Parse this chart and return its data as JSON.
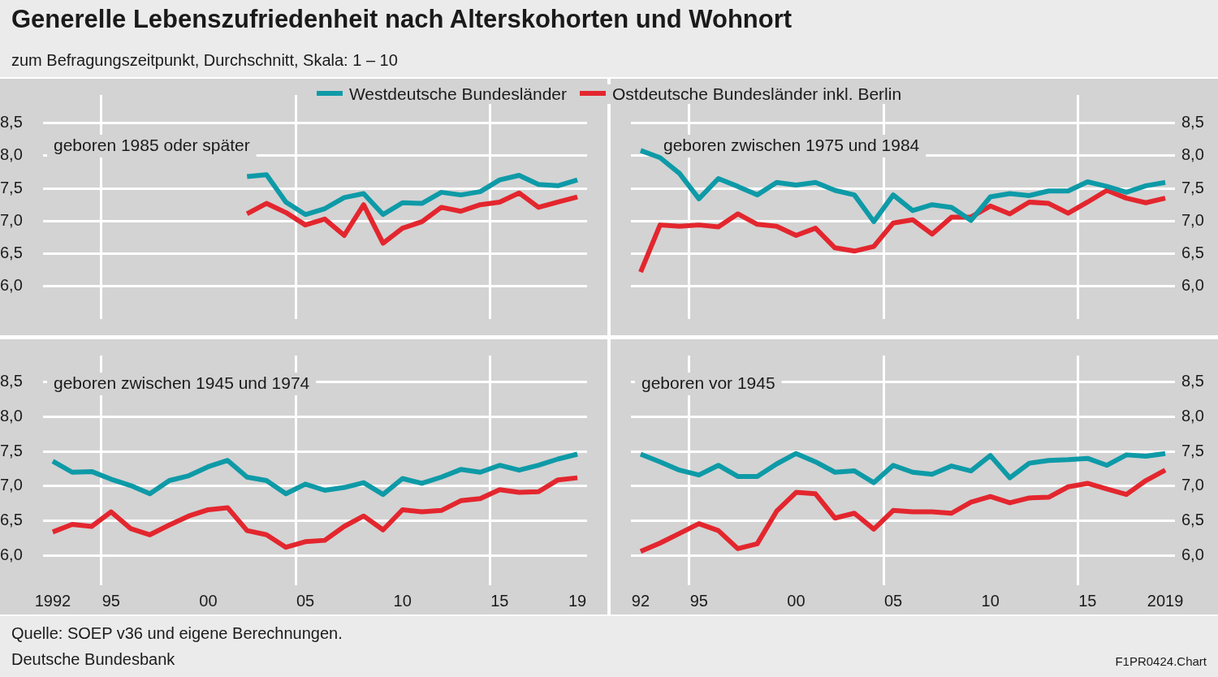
{
  "chart_data": [
    {
      "type": "line",
      "title": "Generelle Lebenszufriedenheit nach Alterskohorten und Wohnort",
      "subtitle": "zum Befragungszeitpunkt, Durchschnitt, Skala: 1 – 10",
      "annotations": [
        "geboren 1985 oder später",
        "Quelle: SOEP v36 und eigene Berechnungen.",
        "Deutsche Bundesbank",
        "F1PR0424.Chart"
      ],
      "xlim": [
        1991.5,
        2019.5
      ],
      "xticks": [
        {
          "value": 1994.5,
          "label": null
        },
        {
          "value": 2004.5,
          "label": null
        },
        {
          "value": 2014.5,
          "label": null
        }
      ],
      "ylim": [
        5.5,
        8.93
      ],
      "yticks": [
        {
          "value": 6,
          "label": "6,0"
        },
        {
          "value": 6.5,
          "label": "6,5"
        },
        {
          "value": 7,
          "label": "7,0"
        },
        {
          "value": 7.5,
          "label": "7,5"
        },
        {
          "value": 8,
          "label": "8,0"
        },
        {
          "value": 8.5,
          "label": "8,5"
        }
      ],
      "grid": true,
      "tick_labels": "y",
      "legend": "top",
      "series": [
        {
          "name": "Westdeutsche Bundesländer",
          "color": "#0e9aa7",
          "x": [
            2002,
            2003,
            2004,
            2005,
            2006,
            2007,
            2008,
            2009,
            2010,
            2011,
            2012,
            2013,
            2014,
            2015,
            2016,
            2017,
            2018,
            2019
          ],
          "values": [
            7.68,
            7.71,
            7.29,
            7.1,
            7.19,
            7.36,
            7.42,
            7.1,
            7.28,
            7.27,
            7.44,
            7.4,
            7.45,
            7.63,
            7.7,
            7.56,
            7.54,
            7.63
          ]
        },
        {
          "name": "Ostdeutsche Bundesländer inkl. Berlin",
          "color": "#e3262e",
          "x": [
            2002,
            2003,
            2004,
            2005,
            2006,
            2007,
            2008,
            2009,
            2010,
            2011,
            2012,
            2013,
            2014,
            2015,
            2016,
            2017,
            2018,
            2019
          ],
          "values": [
            7.11,
            7.27,
            7.13,
            6.94,
            7.03,
            6.78,
            7.25,
            6.66,
            6.89,
            6.99,
            7.21,
            7.15,
            7.25,
            7.29,
            7.43,
            7.21,
            7.29,
            7.37
          ]
        }
      ]
    },
    {
      "type": "line",
      "title": "geboren zwischen 1975 und 1984",
      "x": [
        1992,
        1993,
        1994,
        1995,
        1996,
        1997,
        1998,
        1999,
        2000,
        2001,
        2002,
        2003,
        2004,
        2005,
        2006,
        2007,
        2008,
        2009,
        2010,
        2011,
        2012,
        2013,
        2014,
        2015,
        2016,
        2017,
        2018,
        2019
      ],
      "xlim": [
        1991.5,
        2019.5
      ],
      "xticks": [
        {
          "value": 1994.5,
          "label": null
        },
        {
          "value": 2004.5,
          "label": null
        },
        {
          "value": 2014.5,
          "label": null
        }
      ],
      "ylim": [
        5.5,
        8.93
      ],
      "yticks": [
        {
          "value": 6,
          "label": "6,0"
        },
        {
          "value": 6.5,
          "label": "6,5"
        },
        {
          "value": 7,
          "label": "7,0"
        },
        {
          "value": 7.5,
          "label": "7,5"
        },
        {
          "value": 8,
          "label": "8,0"
        },
        {
          "value": 8.5,
          "label": "8,5"
        }
      ],
      "grid": true,
      "tick_labels": "y",
      "series": [
        {
          "color": "#0e9aa7",
          "values": [
            8.08,
            7.97,
            7.73,
            7.34,
            7.65,
            7.53,
            7.4,
            7.59,
            7.55,
            7.59,
            7.47,
            7.4,
            6.99,
            7.4,
            7.16,
            7.25,
            7.21,
            7.01,
            7.37,
            7.42,
            7.39,
            7.46,
            7.46,
            7.6,
            7.53,
            7.44,
            7.54,
            7.59
          ]
        },
        {
          "color": "#e3262e",
          "values": [
            6.22,
            6.94,
            6.92,
            6.94,
            6.91,
            7.11,
            6.95,
            6.92,
            6.78,
            6.89,
            6.59,
            6.54,
            6.61,
            6.97,
            7.02,
            6.8,
            7.06,
            7.06,
            7.23,
            7.11,
            7.29,
            7.27,
            7.12,
            7.29,
            7.47,
            7.35,
            7.28,
            7.35
          ]
        }
      ]
    },
    {
      "type": "line",
      "title": "geboren zwischen 1945 und 1974",
      "x": [
        1992,
        1993,
        1994,
        1995,
        1996,
        1997,
        1998,
        1999,
        2000,
        2001,
        2002,
        2003,
        2004,
        2005,
        2006,
        2007,
        2008,
        2009,
        2010,
        2011,
        2012,
        2013,
        2014,
        2015,
        2016,
        2017,
        2018,
        2019
      ],
      "xlim": [
        1991.5,
        2019.5
      ],
      "xticks": [
        {
          "value": 1992,
          "label": "1992"
        },
        {
          "value": 1994.5,
          "label": null
        },
        {
          "value": 1995,
          "label": "95"
        },
        {
          "value": 2000,
          "label": "00"
        },
        {
          "value": 2004.5,
          "label": null
        },
        {
          "value": 2005,
          "label": "05"
        },
        {
          "value": 2010,
          "label": "10"
        },
        {
          "value": 2014.5,
          "label": null
        },
        {
          "value": 2015,
          "label": "15"
        },
        {
          "value": 2019,
          "label": "19"
        }
      ],
      "ylim": [
        5.83,
        8.88
      ],
      "yticks": [
        {
          "value": 6,
          "label": "6,0"
        },
        {
          "value": 6.5,
          "label": "6,5"
        },
        {
          "value": 7,
          "label": "7,0"
        },
        {
          "value": 7.5,
          "label": "7,5"
        },
        {
          "value": 8,
          "label": "8,0"
        },
        {
          "value": 8.5,
          "label": "8,5"
        }
      ],
      "grid": true,
      "series": [
        {
          "color": "#0e9aa7",
          "values": [
            7.36,
            7.2,
            7.21,
            7.1,
            7.01,
            6.89,
            7.08,
            7.15,
            7.28,
            7.37,
            7.13,
            7.08,
            6.89,
            7.03,
            6.94,
            6.98,
            7.05,
            6.88,
            7.11,
            7.04,
            7.13,
            7.24,
            7.2,
            7.3,
            7.23,
            7.3,
            7.39,
            7.46
          ]
        },
        {
          "color": "#e3262e",
          "values": [
            6.34,
            6.45,
            6.42,
            6.63,
            6.39,
            6.3,
            6.44,
            6.57,
            6.66,
            6.69,
            6.36,
            6.3,
            6.12,
            6.2,
            6.22,
            6.42,
            6.57,
            6.37,
            6.66,
            6.63,
            6.65,
            6.79,
            6.82,
            6.95,
            6.91,
            6.92,
            7.09,
            7.12
          ]
        }
      ]
    },
    {
      "type": "line",
      "title": "geboren vor 1945",
      "x": [
        1992,
        1993,
        1994,
        1995,
        1996,
        1997,
        1998,
        1999,
        2000,
        2001,
        2002,
        2003,
        2004,
        2005,
        2006,
        2007,
        2008,
        2009,
        2010,
        2011,
        2012,
        2013,
        2014,
        2015,
        2016,
        2017,
        2018,
        2019
      ],
      "xlim": [
        1991.5,
        2019.5
      ],
      "xticks": [
        {
          "value": 1992,
          "label": "92"
        },
        {
          "value": 1994.5,
          "label": null
        },
        {
          "value": 1995,
          "label": "95"
        },
        {
          "value": 2000,
          "label": "00"
        },
        {
          "value": 2004.5,
          "label": null
        },
        {
          "value": 2005,
          "label": "05"
        },
        {
          "value": 2010,
          "label": "10"
        },
        {
          "value": 2014.5,
          "label": null
        },
        {
          "value": 2015,
          "label": "15"
        },
        {
          "value": 2019,
          "label": "2019"
        }
      ],
      "ylim": [
        5.83,
        8.88
      ],
      "yticks": [
        {
          "value": 6,
          "label": "6,0"
        },
        {
          "value": 6.5,
          "label": "6,5"
        },
        {
          "value": 7,
          "label": "7,0"
        },
        {
          "value": 7.5,
          "label": "7,5"
        },
        {
          "value": 8,
          "label": "8,0"
        },
        {
          "value": 8.5,
          "label": "8,5"
        }
      ],
      "grid": true,
      "series": [
        {
          "color": "#0e9aa7",
          "values": [
            7.46,
            7.35,
            7.23,
            7.16,
            7.3,
            7.14,
            7.14,
            7.32,
            7.47,
            7.35,
            7.2,
            7.22,
            7.05,
            7.3,
            7.2,
            7.17,
            7.29,
            7.22,
            7.44,
            7.12,
            7.33,
            7.37,
            7.38,
            7.4,
            7.3,
            7.45,
            7.43,
            7.47
          ]
        },
        {
          "color": "#e3262e",
          "values": [
            6.06,
            6.18,
            6.32,
            6.46,
            6.36,
            6.1,
            6.17,
            6.64,
            6.91,
            6.89,
            6.54,
            6.61,
            6.38,
            6.65,
            6.63,
            6.63,
            6.61,
            6.77,
            6.85,
            6.76,
            6.83,
            6.84,
            6.99,
            7.04,
            6.96,
            6.88,
            7.08,
            7.23
          ]
        }
      ]
    }
  ]
}
